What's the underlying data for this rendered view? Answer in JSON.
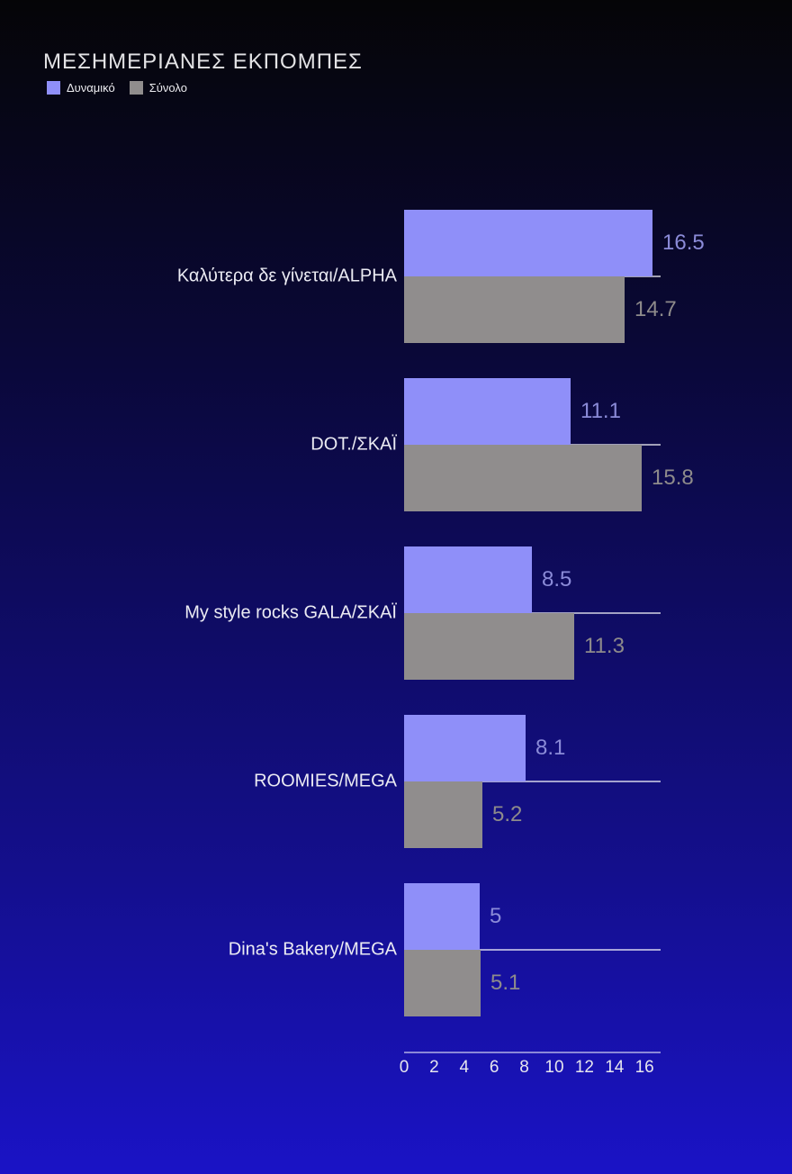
{
  "chart_data": {
    "type": "bar",
    "orientation": "horizontal",
    "title": "ΜΕΣΗΜΕΡΙΑΝΕΣ ΕΚΠΟΜΠΕΣ",
    "categories": [
      "Καλύτερα δε γίνεται/ALPHA",
      "DOT./ΣΚΑΪ",
      "My style rocks GALA/ΣΚΑΪ",
      "ROOMIES/MEGA",
      "Dina's Bakery/MEGA"
    ],
    "series": [
      {
        "name": "Δυναμικό",
        "color": "#8f8ff9",
        "label_color": "#8b8bd8",
        "values": [
          16.5,
          11.1,
          8.5,
          8.1,
          5
        ]
      },
      {
        "name": "Σύνολο",
        "color": "#908d8d",
        "label_color": "#8e8b8b",
        "values": [
          14.7,
          15.8,
          11.3,
          5.2,
          5.1
        ]
      }
    ],
    "x_ticks": [
      0,
      2,
      4,
      6,
      8,
      10,
      12,
      14,
      16
    ],
    "xlim": [
      0,
      17
    ],
    "grid": "category-baselines",
    "legend_position": "top-left",
    "colors": {
      "background_top": "#050507",
      "background_mid": "#0e0b5e",
      "background_bottom": "#1a13c6",
      "axis_line": "rgba(235,235,250,0.55)",
      "baseline": "rgba(255,255,255,0.62)",
      "tick_label": "#e6e6ee",
      "category_label": "#ebebf3",
      "title": "#e3e3e5"
    }
  }
}
